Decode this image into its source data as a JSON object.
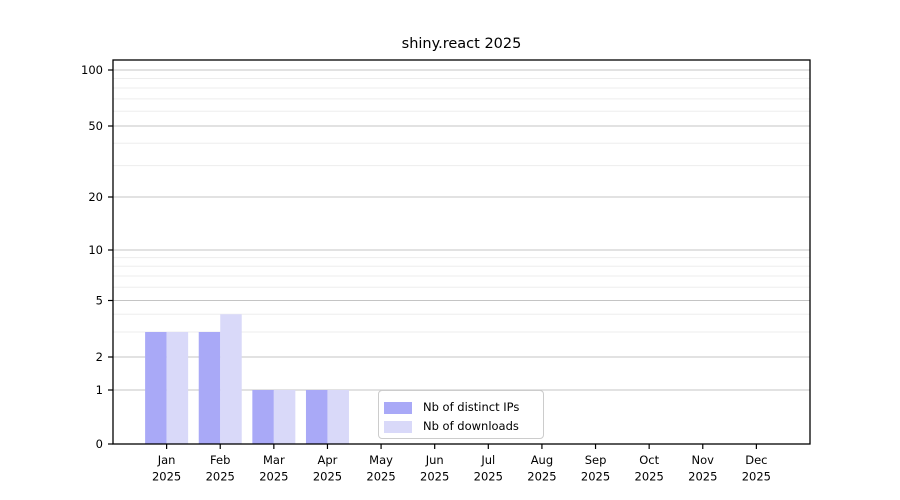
{
  "figure": {
    "title": "shiny.react 2025"
  },
  "chart_data": {
    "type": "bar",
    "title": "shiny.react 2025",
    "x_categories": [
      "Jan",
      "Feb",
      "Mar",
      "Apr",
      "May",
      "Jun",
      "Jul",
      "Aug",
      "Sep",
      "Oct",
      "Nov",
      "Dec"
    ],
    "x_year_label": "2025",
    "series": [
      {
        "name": "Nb of distinct IPs",
        "color": "#a9a9f7",
        "values": [
          3,
          3,
          1,
          1,
          0,
          0,
          0,
          0,
          0,
          0,
          0,
          0
        ]
      },
      {
        "name": "Nb of downloads",
        "color": "#d9d9f9",
        "values": [
          3,
          4,
          1,
          1,
          0,
          0,
          0,
          0,
          0,
          0,
          0,
          0
        ]
      }
    ],
    "y_axis": {
      "scale": "log-like",
      "range": [
        0,
        100
      ],
      "ticks": [
        0,
        1,
        2,
        5,
        10,
        20,
        50,
        100
      ],
      "minor_ticks": [
        3,
        4,
        6,
        7,
        8,
        9,
        30,
        40,
        60,
        70,
        80,
        90
      ]
    },
    "legend": {
      "position": "bottom-center-inside",
      "entries": [
        "Nb of distinct IPs",
        "Nb of downloads"
      ]
    },
    "grid": {
      "major_color": "#c4c4c4",
      "minor_color": "#ededed"
    },
    "axis_color": "#000000"
  }
}
